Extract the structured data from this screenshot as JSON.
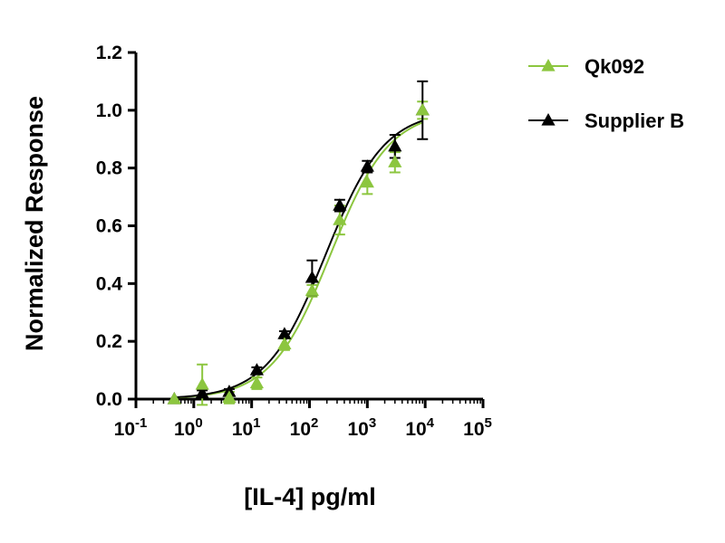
{
  "chart_data": {
    "type": "scatter",
    "title": "",
    "xlabel": "[IL-4] pg/ml",
    "ylabel": "Normalized Response",
    "x_scale": "log10",
    "xlim": [
      0.1,
      100000
    ],
    "ylim": [
      0,
      1.2
    ],
    "x_tick_exponents": [
      "-1",
      "0",
      "1",
      "2",
      "3",
      "4",
      "5"
    ],
    "y_ticks": [
      "0.0",
      "0.2",
      "0.4",
      "0.6",
      "0.8",
      "1.0",
      "1.2"
    ],
    "grid": false,
    "legend_position": "top-right",
    "series": [
      {
        "name": "Qk092",
        "color": "#8cc63f",
        "marker": "triangle",
        "x": [
          0.46,
          1.4,
          4.1,
          12.3,
          37,
          111,
          333,
          1000,
          3000,
          9000
        ],
        "y": [
          0.0,
          0.05,
          0.005,
          0.055,
          0.19,
          0.375,
          0.62,
          0.75,
          0.82,
          1.0
        ],
        "error": [
          0,
          0.07,
          0.02,
          0.02,
          0.02,
          0.02,
          0.05,
          0.04,
          0.035,
          0.03
        ],
        "fit": {
          "bottom": 0.0,
          "top": 1.0,
          "ec50": 230,
          "hill": 0.85
        }
      },
      {
        "name": "Supplier B",
        "color": "#000000",
        "marker": "triangle",
        "x": [
          0.46,
          1.4,
          4.1,
          12.3,
          37,
          111,
          333,
          1000,
          3000,
          9000
        ],
        "y": [
          0.0,
          0.02,
          0.025,
          0.1,
          0.225,
          0.42,
          0.67,
          0.805,
          0.875,
          1.0
        ],
        "error": [
          0,
          0.01,
          0.01,
          0.01,
          0.01,
          0.06,
          0.02,
          0.02,
          0.04,
          0.1
        ],
        "fit": {
          "bottom": 0.0,
          "top": 1.0,
          "ec50": 190,
          "hill": 0.85
        }
      }
    ]
  }
}
